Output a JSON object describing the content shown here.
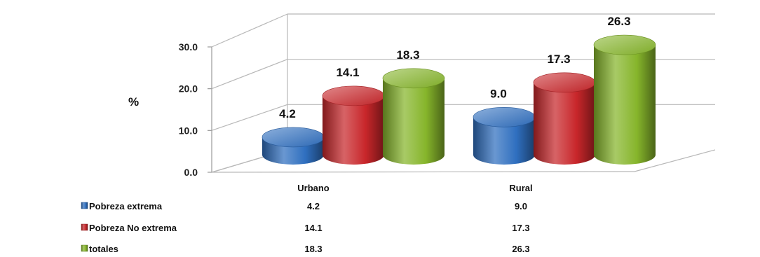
{
  "chart_data": {
    "type": "bar",
    "ylabel": "%",
    "ylim": [
      0,
      30
    ],
    "yticks": [
      "0.0",
      "10.0",
      "20.0",
      "30.0"
    ],
    "grid": true,
    "categories": [
      "Urbano",
      "Rural"
    ],
    "series": [
      {
        "name": "Pobreza extrema",
        "values": [
          4.2,
          9.0
        ],
        "labels": [
          "4.2",
          "9.0"
        ],
        "color": "#2f6fbf"
      },
      {
        "name": "Pobreza No extrema",
        "values": [
          14.1,
          17.3
        ],
        "labels": [
          "14.1",
          "17.3"
        ],
        "color": "#c8262a"
      },
      {
        "name": "totales",
        "values": [
          18.3,
          26.3
        ],
        "labels": [
          "18.3",
          "26.3"
        ],
        "color": "#86b52b"
      }
    ]
  }
}
